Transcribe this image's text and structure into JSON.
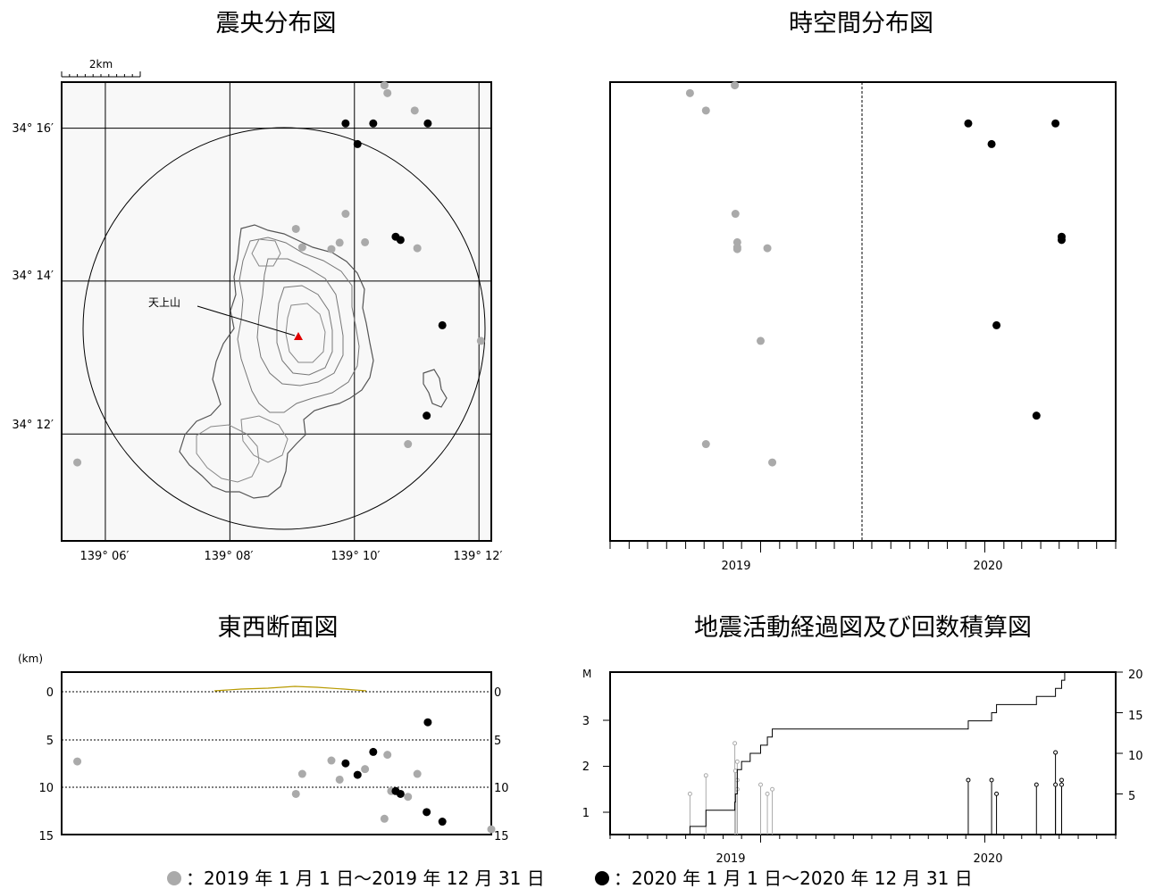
{
  "titles": {
    "epicenter": "震央分布図",
    "spacetime": "時空間分布図",
    "cross_section": "東西断面図",
    "activity": "地震活動経過図及び回数積算図"
  },
  "map": {
    "scale_label": "2km",
    "lat_labels": [
      "34° 16′",
      "34° 14′",
      "34° 12′"
    ],
    "lon_labels": [
      "139° 06′",
      "139° 08′",
      "139° 10′",
      "139° 12′"
    ],
    "volcano_label": "天上山",
    "volcano_color": "#e00000"
  },
  "time_axis": {
    "labels": [
      "2019",
      "2020"
    ]
  },
  "cross_section_axis": {
    "unit": "(km)",
    "ticks": [
      "0",
      "5",
      "10",
      "15"
    ]
  },
  "activity_axis": {
    "m_label": "M",
    "m_ticks": [
      "1",
      "2",
      "3"
    ],
    "count_ticks": [
      "5",
      "10",
      "15",
      "20"
    ]
  },
  "legend": {
    "group_2019": "：2019 年 1 月 1 日～2019 年 12 月 31 日",
    "group_2020": "：2020 年 1 月 1 日～2020 年 12 月 31 日",
    "color_2019": "#aaaaaa",
    "color_2020": "#000000"
  },
  "chart_data": [
    {
      "type": "scatter",
      "title": "震央分布図",
      "x_label": "longitude",
      "y_label": "latitude",
      "xlim": [
        139.0883,
        139.2033
      ],
      "ylim": [
        34.1767,
        34.2767
      ],
      "series": [
        {
          "name": "2019",
          "points": [
            [
              139.1747,
              34.276
            ],
            [
              139.1755,
              34.2743
            ],
            [
              139.1828,
              34.2705
            ],
            [
              139.1643,
              34.248
            ],
            [
              139.151,
              34.2447
            ],
            [
              139.1627,
              34.2417
            ],
            [
              139.1695,
              34.2418
            ],
            [
              139.1527,
              34.2407
            ],
            [
              139.1605,
              34.2403
            ],
            [
              139.1835,
              34.2405
            ],
            [
              139.2005,
              34.2203
            ],
            [
              139.181,
              34.1978
            ],
            [
              139.0925,
              34.1938
            ]
          ]
        },
        {
          "name": "2020",
          "points": [
            [
              139.1643,
              34.2677
            ],
            [
              139.1717,
              34.2677
            ],
            [
              139.1863,
              34.2677
            ],
            [
              139.1675,
              34.2632
            ],
            [
              139.1777,
              34.243
            ],
            [
              139.179,
              34.2423
            ],
            [
              139.1902,
              34.2237
            ],
            [
              139.186,
              34.204
            ]
          ]
        }
      ]
    },
    {
      "type": "scatter",
      "title": "時空間分布図",
      "x_label": "time",
      "y_label": "latitude",
      "xlim": [
        "2018-05-01",
        "2020-08-01"
      ],
      "ylim": [
        34.1767,
        34.2767
      ],
      "series": [
        {
          "name": "2019",
          "points": [
            [
              "2018-09-08",
              34.2743
            ],
            [
              "2018-11-20",
              34.276
            ],
            [
              "2018-10-04",
              34.2705
            ],
            [
              "2018-11-21",
              34.248
            ],
            [
              "2018-11-24",
              34.2418
            ],
            [
              "2018-11-24",
              34.2407
            ],
            [
              "2018-11-24",
              34.2403
            ],
            [
              "2019-01-12",
              34.2405
            ],
            [
              "2019-01-01",
              34.2203
            ],
            [
              "2018-10-04",
              34.1978
            ],
            [
              "2019-01-20",
              34.1938
            ]
          ]
        },
        {
          "name": "2020",
          "points": [
            [
              "2019-12-05",
              34.2677
            ],
            [
              "2020-01-12",
              34.2632
            ],
            [
              "2020-04-25",
              34.2677
            ],
            [
              "2020-05-05",
              34.243
            ],
            [
              "2020-05-05",
              34.2423
            ],
            [
              "2020-01-20",
              34.2237
            ],
            [
              "2020-03-25",
              34.204
            ]
          ]
        }
      ]
    },
    {
      "type": "scatter",
      "title": "東西断面図",
      "x_label": "longitude",
      "y_label": "depth (km)",
      "xlim": [
        139.0883,
        139.2033
      ],
      "ylim": [
        15,
        0
      ],
      "series": [
        {
          "name": "2019",
          "points": [
            [
              139.0925,
              7.3
            ],
            [
              139.151,
              10.7
            ],
            [
              139.1527,
              8.6
            ],
            [
              139.1605,
              7.2
            ],
            [
              139.1627,
              9.2
            ],
            [
              139.1695,
              8.1
            ],
            [
              139.1755,
              6.6
            ],
            [
              139.1765,
              10.4
            ],
            [
              139.181,
              11.0
            ],
            [
              139.1835,
              8.6
            ],
            [
              139.1747,
              13.3
            ],
            [
              139.2033,
              14.4
            ]
          ]
        },
        {
          "name": "2020",
          "points": [
            [
              139.1863,
              3.2
            ],
            [
              139.1717,
              6.3
            ],
            [
              139.1643,
              7.5
            ],
            [
              139.1675,
              8.7
            ],
            [
              139.1777,
              10.4
            ],
            [
              139.179,
              10.7
            ],
            [
              139.186,
              12.6
            ],
            [
              139.1902,
              13.6
            ]
          ]
        }
      ]
    },
    {
      "type": "line",
      "title": "地震活動経過図及び回数積算図",
      "x_label": "time",
      "y_label": "M",
      "xlim": [
        "2018-05-01",
        "2020-08-01"
      ],
      "ylim": [
        0.5,
        4.0
      ],
      "y2lim": [
        0,
        20
      ],
      "magnitudes": [
        {
          "date": "2018-09-08",
          "m": 1.4,
          "group": "2019"
        },
        {
          "date": "2018-10-04",
          "m": 1.8,
          "group": "2019"
        },
        {
          "date": "2018-11-20",
          "m": 2.5,
          "group": "2019"
        },
        {
          "date": "2018-11-21",
          "m": 1.9,
          "group": "2019"
        },
        {
          "date": "2018-11-24",
          "m": 2.1,
          "group": "2019"
        },
        {
          "date": "2018-11-24",
          "m": 1.7,
          "group": "2019"
        },
        {
          "date": "2018-11-24",
          "m": 1.5,
          "group": "2019"
        },
        {
          "date": "2019-01-01",
          "m": 1.6,
          "group": "2019"
        },
        {
          "date": "2019-01-12",
          "m": 1.4,
          "group": "2019"
        },
        {
          "date": "2019-01-20",
          "m": 1.5,
          "group": "2019"
        },
        {
          "date": "2019-12-05",
          "m": 1.7,
          "group": "2020"
        },
        {
          "date": "2020-01-12",
          "m": 1.7,
          "group": "2020"
        },
        {
          "date": "2020-01-20",
          "m": 1.4,
          "group": "2020"
        },
        {
          "date": "2020-03-25",
          "m": 1.6,
          "group": "2020"
        },
        {
          "date": "2020-04-25",
          "m": 2.3,
          "group": "2020"
        },
        {
          "date": "2020-04-25",
          "m": 1.6,
          "group": "2020"
        },
        {
          "date": "2020-05-05",
          "m": 1.7,
          "group": "2020"
        },
        {
          "date": "2020-05-05",
          "m": 1.6,
          "group": "2020"
        }
      ],
      "cumulative": {
        "dates": [
          "2018-05-01",
          "2018-09-08",
          "2018-10-04",
          "2018-11-20",
          "2018-11-21",
          "2018-11-24",
          "2018-12-01",
          "2018-12-15",
          "2019-01-01",
          "2019-01-12",
          "2019-01-20",
          "2019-12-05",
          "2020-01-12",
          "2020-01-20",
          "2020-03-25",
          "2020-04-25",
          "2020-05-05",
          "2020-05-10",
          "2020-08-01"
        ],
        "counts": [
          0,
          1,
          3,
          4,
          5,
          8,
          9,
          10,
          11,
          12,
          13,
          14,
          15,
          16,
          17,
          18,
          19,
          20,
          20
        ]
      }
    }
  ]
}
